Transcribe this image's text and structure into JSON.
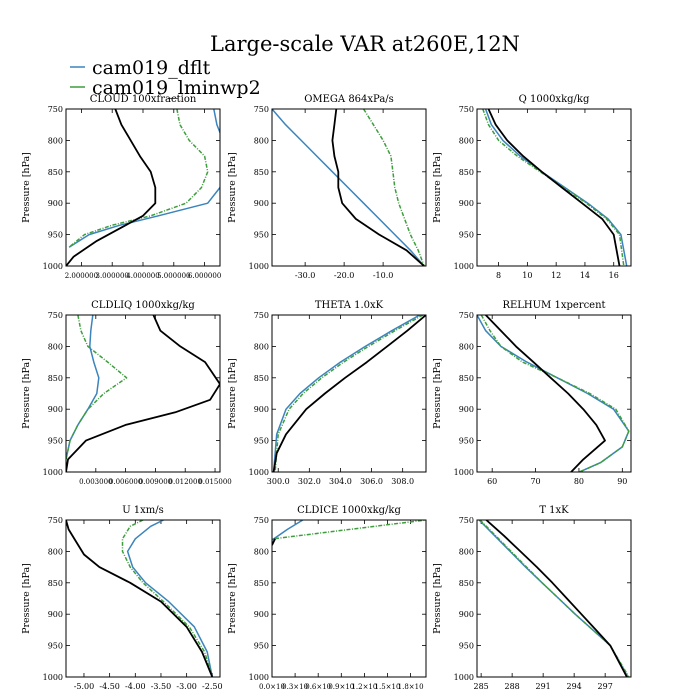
{
  "title": "Large-scale VAR at260E,12N",
  "legend": [
    {
      "label": "cam019_dflt",
      "color": "#3b84bd"
    },
    {
      "label": "cam019_lminwp2",
      "color": "#3e9e3e"
    }
  ],
  "colors": {
    "black": "#000000"
  },
  "chart_data": [
    {
      "type": "line",
      "title": "CLOUD  100xfraction",
      "ylabel": "Pressure [hPa]",
      "xlim": [
        0.0,
        1.0
      ],
      "ylim": [
        1000,
        750
      ],
      "xticks": [
        0.1,
        0.3,
        0.5,
        0.7,
        0.9
      ],
      "xtick_labels": [
        "2.000000",
        "3.000000",
        "4.000000",
        "5.000000",
        "6.000000"
      ],
      "yticks": [
        750,
        800,
        850,
        900,
        950,
        1000
      ],
      "x_label_overlap": true,
      "series": [
        {
          "name": "cam019_dflt",
          "color": "#3b84bd",
          "dash": "",
          "x": [
            0.96,
            0.98,
            1.02,
            1.05,
            1.03,
            1.0,
            0.92,
            0.6,
            0.35,
            0.15,
            0.02
          ],
          "y": [
            750,
            775,
            800,
            825,
            850,
            875,
            900,
            920,
            935,
            950,
            970
          ]
        },
        {
          "name": "cam019_lminwp2",
          "color": "#3e9e3e",
          "dash": "4,1.5,1,1.5",
          "x": [
            0.72,
            0.74,
            0.8,
            0.9,
            0.92,
            0.88,
            0.78,
            0.55,
            0.3,
            0.12,
            0.02
          ],
          "y": [
            750,
            775,
            800,
            825,
            850,
            875,
            900,
            920,
            935,
            950,
            970
          ]
        },
        {
          "name": "black",
          "color": "#000000",
          "dash": "",
          "x": [
            0.32,
            0.36,
            0.42,
            0.48,
            0.55,
            0.58,
            0.58,
            0.5,
            0.2,
            0.05,
            0.0
          ],
          "y": [
            750,
            775,
            800,
            825,
            850,
            875,
            900,
            920,
            960,
            985,
            1000
          ]
        }
      ]
    },
    {
      "type": "line",
      "title": "OMEGA  864xPa/s",
      "ylabel": "Pressure [hPa]",
      "xlim": [
        -38.5,
        1
      ],
      "ylim": [
        1000,
        750
      ],
      "xticks": [
        -30,
        -20,
        -10
      ],
      "xtick_labels": [
        "-30.0",
        "-20.0",
        "-10.0"
      ],
      "yticks": [
        750,
        800,
        850,
        900,
        950,
        1000
      ],
      "series": [
        {
          "name": "cam019_dflt",
          "color": "#3b84bd",
          "dash": "",
          "x": [
            -38.5,
            -35,
            -31,
            -27,
            -23,
            -19,
            -15,
            -11,
            -7,
            -3,
            0.5
          ],
          "y": [
            750,
            775,
            800,
            825,
            850,
            875,
            900,
            925,
            950,
            975,
            1000
          ]
        },
        {
          "name": "cam019_lminwp2",
          "color": "#3e9e3e",
          "dash": "4,1.5,1,1.5",
          "x": [
            -15,
            -12.5,
            -10,
            -8,
            -7.5,
            -7,
            -6,
            -4.5,
            -3,
            -1,
            0.5
          ],
          "y": [
            750,
            775,
            800,
            825,
            850,
            875,
            900,
            925,
            950,
            975,
            1000
          ]
        },
        {
          "name": "black",
          "color": "#000000",
          "dash": "",
          "x": [
            -22,
            -22.5,
            -23,
            -22.5,
            -21.5,
            -21.5,
            -20.5,
            -17,
            -11,
            -4,
            0.5
          ],
          "y": [
            750,
            775,
            800,
            825,
            850,
            875,
            900,
            925,
            950,
            975,
            1000
          ]
        }
      ]
    },
    {
      "type": "line",
      "title": "Q  1000xkg/kg",
      "ylabel": "Pressure [hPa]",
      "xlim": [
        6.5,
        17.2
      ],
      "ylim": [
        1000,
        750
      ],
      "xticks": [
        8,
        10,
        12,
        14,
        16
      ],
      "xtick_labels": [
        "8",
        "10",
        "12",
        "14",
        "16"
      ],
      "yticks": [
        750,
        800,
        850,
        900,
        950,
        1000
      ],
      "series": [
        {
          "name": "cam019_dflt",
          "color": "#3b84bd",
          "dash": "",
          "x": [
            7.1,
            7.5,
            8.3,
            9.5,
            11,
            12.6,
            14.2,
            15.6,
            16.5,
            16.9
          ],
          "y": [
            750,
            775,
            800,
            825,
            850,
            875,
            900,
            925,
            950,
            1000
          ]
        },
        {
          "name": "cam019_lminwp2",
          "color": "#3e9e3e",
          "dash": "4,1.5,1,1.5",
          "x": [
            6.9,
            7.3,
            8.0,
            9.3,
            10.9,
            12.5,
            14.1,
            15.5,
            16.4,
            16.7
          ],
          "y": [
            750,
            775,
            800,
            825,
            850,
            875,
            900,
            925,
            950,
            1000
          ]
        },
        {
          "name": "black",
          "color": "#000000",
          "dash": "",
          "x": [
            7.3,
            7.8,
            8.6,
            9.7,
            11.0,
            12.4,
            13.8,
            15.2,
            16.0,
            16.4
          ],
          "y": [
            750,
            775,
            800,
            825,
            850,
            875,
            900,
            925,
            950,
            1000
          ]
        }
      ]
    },
    {
      "type": "line",
      "title": "CLDLIQ  1000xkg/kg",
      "ylabel": "Pressure [hPa]",
      "xlim": [
        0.0,
        0.0155
      ],
      "ylim": [
        1000,
        750
      ],
      "xticks": [
        0.003,
        0.006,
        0.009,
        0.012,
        0.015
      ],
      "xtick_labels": [
        "0.003000",
        "0.006000",
        "0.009000",
        "0.012000",
        "0.015000"
      ],
      "yticks": [
        750,
        800,
        850,
        900,
        950,
        1000
      ],
      "x_label_overlap": true,
      "series": [
        {
          "name": "cam019_dflt",
          "color": "#3b84bd",
          "dash": "",
          "x": [
            0.0027,
            0.0025,
            0.0024,
            0.0028,
            0.0033,
            0.0031,
            0.0022,
            0.0012,
            0.0004,
            0.0
          ],
          "y": [
            750,
            775,
            800,
            825,
            850,
            875,
            900,
            925,
            950,
            980
          ]
        },
        {
          "name": "cam019_lminwp2",
          "color": "#3e9e3e",
          "dash": "4,1.5,1,1.5",
          "x": [
            0.0012,
            0.0015,
            0.0022,
            0.0042,
            0.0061,
            0.0038,
            0.0022,
            0.0012,
            0.0004,
            0.0
          ],
          "y": [
            750,
            775,
            800,
            825,
            850,
            875,
            900,
            925,
            950,
            980
          ]
        },
        {
          "name": "black",
          "color": "#000000",
          "dash": "",
          "x": [
            0.0088,
            0.0095,
            0.0115,
            0.014,
            0.0155,
            0.0145,
            0.011,
            0.006,
            0.002,
            0.0002,
            0.0
          ],
          "y": [
            750,
            775,
            800,
            825,
            860,
            885,
            905,
            925,
            950,
            980,
            1000
          ]
        }
      ]
    },
    {
      "type": "line",
      "title": "THETA  1.0xK",
      "ylabel": "Pressure [hPa]",
      "xlim": [
        299.6,
        309.5
      ],
      "ylim": [
        1000,
        750
      ],
      "xticks": [
        300,
        302,
        304,
        306,
        308
      ],
      "xtick_labels": [
        "300.0",
        "302.0",
        "304.0",
        "306.0",
        "308.0"
      ],
      "yticks": [
        750,
        800,
        850,
        900,
        950,
        1000
      ],
      "series": [
        {
          "name": "cam019_dflt",
          "color": "#3b84bd",
          "dash": "",
          "x": [
            309.1,
            307.3,
            305.6,
            304.0,
            302.6,
            301.4,
            300.5,
            299.9,
            299.7
          ],
          "y": [
            750,
            775,
            800,
            825,
            850,
            875,
            900,
            940,
            1000
          ]
        },
        {
          "name": "cam019_lminwp2",
          "color": "#3e9e3e",
          "dash": "4,1.5,1,1.5",
          "x": [
            309.3,
            307.5,
            305.8,
            304.2,
            302.8,
            301.6,
            300.7,
            300.0,
            299.8
          ],
          "y": [
            750,
            775,
            800,
            825,
            850,
            875,
            900,
            940,
            1000
          ]
        },
        {
          "name": "black",
          "color": "#000000",
          "dash": "",
          "x": [
            309.5,
            308.3,
            307.0,
            305.7,
            304.3,
            303.0,
            301.8,
            300.5,
            299.9,
            299.7
          ],
          "y": [
            750,
            775,
            800,
            825,
            850,
            875,
            900,
            940,
            970,
            1000
          ]
        }
      ]
    },
    {
      "type": "line",
      "title": "RELHUM  1xpercent",
      "ylabel": "Pressure [hPa]",
      "xlim": [
        56.5,
        92
      ],
      "ylim": [
        1000,
        750
      ],
      "xticks": [
        60,
        70,
        80,
        90
      ],
      "xtick_labels": [
        "60",
        "70",
        "80",
        "90"
      ],
      "yticks": [
        750,
        800,
        850,
        900,
        950,
        1000
      ],
      "series": [
        {
          "name": "cam019_dflt",
          "color": "#3b84bd",
          "dash": "",
          "x": [
            56.5,
            58.5,
            62,
            68,
            75,
            82,
            88,
            91.5,
            90,
            85,
            78.5
          ],
          "y": [
            750,
            775,
            800,
            825,
            850,
            875,
            900,
            935,
            960,
            985,
            1005
          ]
        },
        {
          "name": "cam019_lminwp2",
          "color": "#3e9e3e",
          "dash": "4,1.5,1,1.5",
          "x": [
            57.5,
            59.5,
            62,
            67,
            75,
            82.5,
            88.5,
            91.5,
            90,
            85,
            78.5
          ],
          "y": [
            750,
            775,
            800,
            825,
            850,
            875,
            900,
            935,
            960,
            985,
            1005
          ]
        },
        {
          "name": "black",
          "color": "#000000",
          "dash": "",
          "x": [
            58.5,
            62,
            65.5,
            69.5,
            73.5,
            77.5,
            81,
            84,
            86,
            81,
            77.5
          ],
          "y": [
            750,
            775,
            800,
            825,
            850,
            875,
            900,
            925,
            950,
            980,
            1005
          ]
        }
      ]
    },
    {
      "type": "line",
      "title": "U  1xm/s",
      "ylabel": "Pressure [hPa]",
      "xlim": [
        -5.35,
        -2.35
      ],
      "ylim": [
        1000,
        750
      ],
      "xticks": [
        -5.0,
        -4.5,
        -4.0,
        -3.5,
        -3.0,
        -2.5
      ],
      "xtick_labels": [
        "-5.00",
        "-4.50",
        "-4.00",
        "-3.50",
        "-3.00",
        "-2.50"
      ],
      "yticks": [
        750,
        800,
        850,
        900,
        950,
        1000
      ],
      "series": [
        {
          "name": "cam019_dflt",
          "color": "#3b84bd",
          "dash": "",
          "x": [
            -3.45,
            -3.7,
            -4.0,
            -4.15,
            -4.05,
            -3.8,
            -3.35,
            -2.85,
            -2.6,
            -2.5
          ],
          "y": [
            750,
            760,
            780,
            800,
            825,
            850,
            880,
            920,
            960,
            1000
          ]
        },
        {
          "name": "cam019_lminwp2",
          "color": "#3e9e3e",
          "dash": "4,1.5,1,1.5",
          "x": [
            -3.85,
            -4.1,
            -4.25,
            -4.25,
            -4.1,
            -3.85,
            -3.45,
            -2.95,
            -2.65,
            -2.5
          ],
          "y": [
            750,
            760,
            780,
            800,
            825,
            850,
            880,
            920,
            960,
            1000
          ]
        },
        {
          "name": "black",
          "color": "#000000",
          "dash": "",
          "x": [
            -5.35,
            -5.3,
            -5.15,
            -5.0,
            -4.7,
            -4.1,
            -3.5,
            -3.0,
            -2.7,
            -2.5
          ],
          "y": [
            750,
            765,
            785,
            805,
            825,
            850,
            880,
            920,
            960,
            1000
          ]
        }
      ]
    },
    {
      "type": "line",
      "title": "CLDICE  1000xkg/kg",
      "ylabel": "Pressure [hPa]",
      "xlim": [
        0,
        1.0
      ],
      "ylim": [
        1000,
        750
      ],
      "xticks": [
        0.0,
        0.15,
        0.3,
        0.45,
        0.6,
        0.75,
        0.9
      ],
      "xtick_labels": [
        "0.0×10",
        "0.3×10",
        "0.6×10",
        "0.9×10",
        "1.2×10",
        "1.5×10",
        "1.8×10"
      ],
      "yticks": [
        750,
        800,
        850,
        900,
        950,
        1000
      ],
      "x_label_overlap": true,
      "series": [
        {
          "name": "cam019_dflt",
          "color": "#3b84bd",
          "dash": "",
          "x": [
            0.0,
            0.1,
            0.2
          ],
          "y": [
            782,
            765,
            750
          ]
        },
        {
          "name": "cam019_lminwp2",
          "color": "#3e9e3e",
          "dash": "4,1.5,1,1.5",
          "x": [
            0.0,
            0.01,
            1.0
          ],
          "y": [
            790,
            780,
            750
          ]
        },
        {
          "name": "black",
          "color": "#000000",
          "dash": "",
          "x": [
            0.0,
            0.02
          ],
          "y": [
            790,
            780
          ]
        }
      ]
    },
    {
      "type": "line",
      "title": "T  1xK",
      "ylabel": "Pressure [hPa]",
      "xlim": [
        284.6,
        299.5
      ],
      "ylim": [
        1000,
        750
      ],
      "xticks": [
        285,
        288,
        291,
        294,
        297
      ],
      "xtick_labels": [
        "285",
        "288",
        "291",
        "294",
        "297"
      ],
      "yticks": [
        750,
        800,
        850,
        900,
        950,
        1000
      ],
      "series": [
        {
          "name": "cam019_dflt",
          "color": "#3b84bd",
          "dash": "",
          "x": [
            284.8,
            286.3,
            287.8,
            289.3,
            290.9,
            292.5,
            294.1,
            295.8,
            297.5,
            299.2
          ],
          "y": [
            750,
            775,
            800,
            825,
            850,
            875,
            900,
            925,
            950,
            1000
          ]
        },
        {
          "name": "cam019_lminwp2",
          "color": "#3e9e3e",
          "dash": "4,1.5,1,1.5",
          "x": [
            284.9,
            286.4,
            287.9,
            289.4,
            290.9,
            292.5,
            294.1,
            295.8,
            297.5,
            299.3
          ],
          "y": [
            750,
            775,
            800,
            825,
            850,
            875,
            900,
            925,
            950,
            1000
          ]
        },
        {
          "name": "black",
          "color": "#000000",
          "dash": "",
          "x": [
            285.5,
            287.2,
            288.8,
            290.4,
            291.9,
            293.3,
            294.7,
            296.1,
            297.5,
            299.1
          ],
          "y": [
            750,
            775,
            800,
            825,
            850,
            875,
            900,
            925,
            950,
            1000
          ]
        }
      ]
    }
  ]
}
